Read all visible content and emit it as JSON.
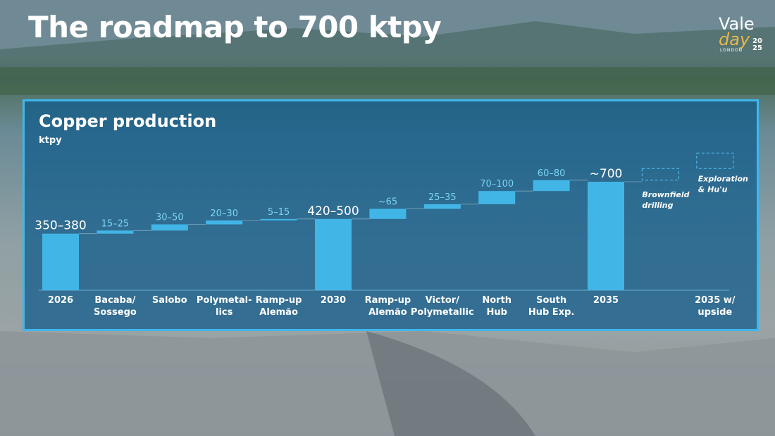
{
  "slide": {
    "title": "The roadmap to 700 ktpy"
  },
  "logo": {
    "brand": "Vale",
    "event": "day",
    "city": "LONDON",
    "year_top": "20",
    "year_bottom": "25"
  },
  "colors": {
    "bar": "#41b6e6",
    "panel_border": "#3fb7ec",
    "value_label_small": "#7ad3f6",
    "placeholder_dash": "#4db8e8"
  },
  "chart_data": {
    "type": "bar",
    "subtype": "waterfall",
    "title": "Copper production",
    "unit_label": "ktpy",
    "categories": [
      [
        "2026"
      ],
      [
        "Bacaba/",
        "Sossego"
      ],
      [
        "Salobo"
      ],
      [
        "Polymetal-",
        "lics"
      ],
      [
        "Ramp-up",
        "Alemão"
      ],
      [
        "2030"
      ],
      [
        "Ramp-up",
        "Alemão"
      ],
      [
        "Victor/",
        "Polymetallic"
      ],
      [
        "North",
        "Hub"
      ],
      [
        "South",
        "Hub Exp."
      ],
      [
        "2035"
      ],
      [
        ""
      ],
      [
        "2035 w/",
        "upside"
      ]
    ],
    "bars": [
      {
        "kind": "total",
        "start": 0,
        "end": 365,
        "label": "350–380"
      },
      {
        "kind": "delta",
        "start": 365,
        "end": 385,
        "label": "15–25"
      },
      {
        "kind": "delta",
        "start": 385,
        "end": 425,
        "label": "30–50"
      },
      {
        "kind": "delta",
        "start": 425,
        "end": 450,
        "label": "20–30"
      },
      {
        "kind": "delta",
        "start": 450,
        "end": 460,
        "label": "5–15"
      },
      {
        "kind": "total",
        "start": 0,
        "end": 460,
        "label": "420–500"
      },
      {
        "kind": "delta",
        "start": 460,
        "end": 525,
        "label": "~65"
      },
      {
        "kind": "delta",
        "start": 525,
        "end": 555,
        "label": "25–35"
      },
      {
        "kind": "delta",
        "start": 555,
        "end": 640,
        "label": "70–100"
      },
      {
        "kind": "delta",
        "start": 640,
        "end": 710,
        "label": "60–80"
      },
      {
        "kind": "total",
        "start": 0,
        "end": 700,
        "label": "~700"
      },
      {
        "kind": "placeholder",
        "start": 710,
        "end": 785,
        "label": ""
      },
      {
        "kind": "placeholder",
        "start": 785,
        "end": 885,
        "label": ""
      }
    ],
    "annotations": [
      {
        "category_index": 11,
        "lines": [
          "Brownfield",
          "drilling"
        ]
      },
      {
        "category_index": 12,
        "lines": [
          "Exploration",
          "& Hu'u"
        ]
      }
    ],
    "ylim": [
      0,
      900
    ],
    "grid": false,
    "legend": "none"
  }
}
